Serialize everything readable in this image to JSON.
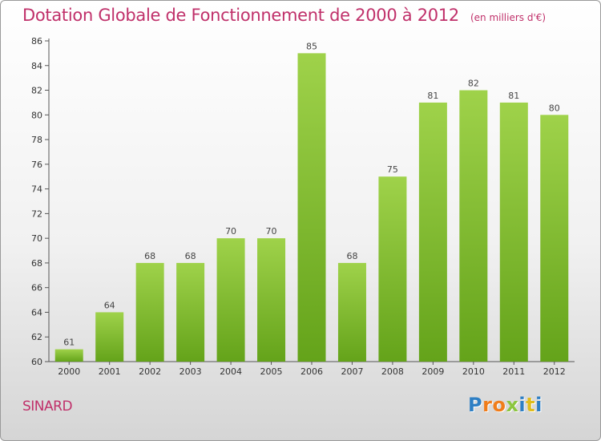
{
  "title": "Dotation Globale de Fonctionnement de 2000 à 2012",
  "unit_note": "(en milliers d'€)",
  "commune": "SINARD",
  "logo": {
    "letters": [
      "P",
      "r",
      "o",
      "x",
      "i",
      "t",
      "i"
    ],
    "colors": [
      "#2e7fc4",
      "#f07d1b",
      "#f07d1b",
      "#8cc63f",
      "#2e7fc4",
      "#e0bc1c",
      "#2e7fc4"
    ]
  },
  "colors": {
    "title": "#c0306a",
    "bar_light": "#9fd24a",
    "bar_dark": "#64a31a"
  },
  "chart_data": {
    "type": "bar",
    "title": "Dotation Globale de Fonctionnement de 2000 à 2012",
    "subtitle": "(en milliers d'€)",
    "categories": [
      "2000",
      "2001",
      "2002",
      "2003",
      "2004",
      "2005",
      "2006",
      "2007",
      "2008",
      "2009",
      "2010",
      "2011",
      "2012"
    ],
    "values": [
      61,
      64,
      68,
      68,
      70,
      70,
      85,
      68,
      75,
      81,
      82,
      81,
      80
    ],
    "ylim": [
      60,
      86
    ],
    "yticks": [
      60,
      62,
      64,
      66,
      68,
      70,
      72,
      74,
      76,
      78,
      80,
      82,
      84,
      86
    ],
    "grid": false,
    "data_labels": true
  }
}
